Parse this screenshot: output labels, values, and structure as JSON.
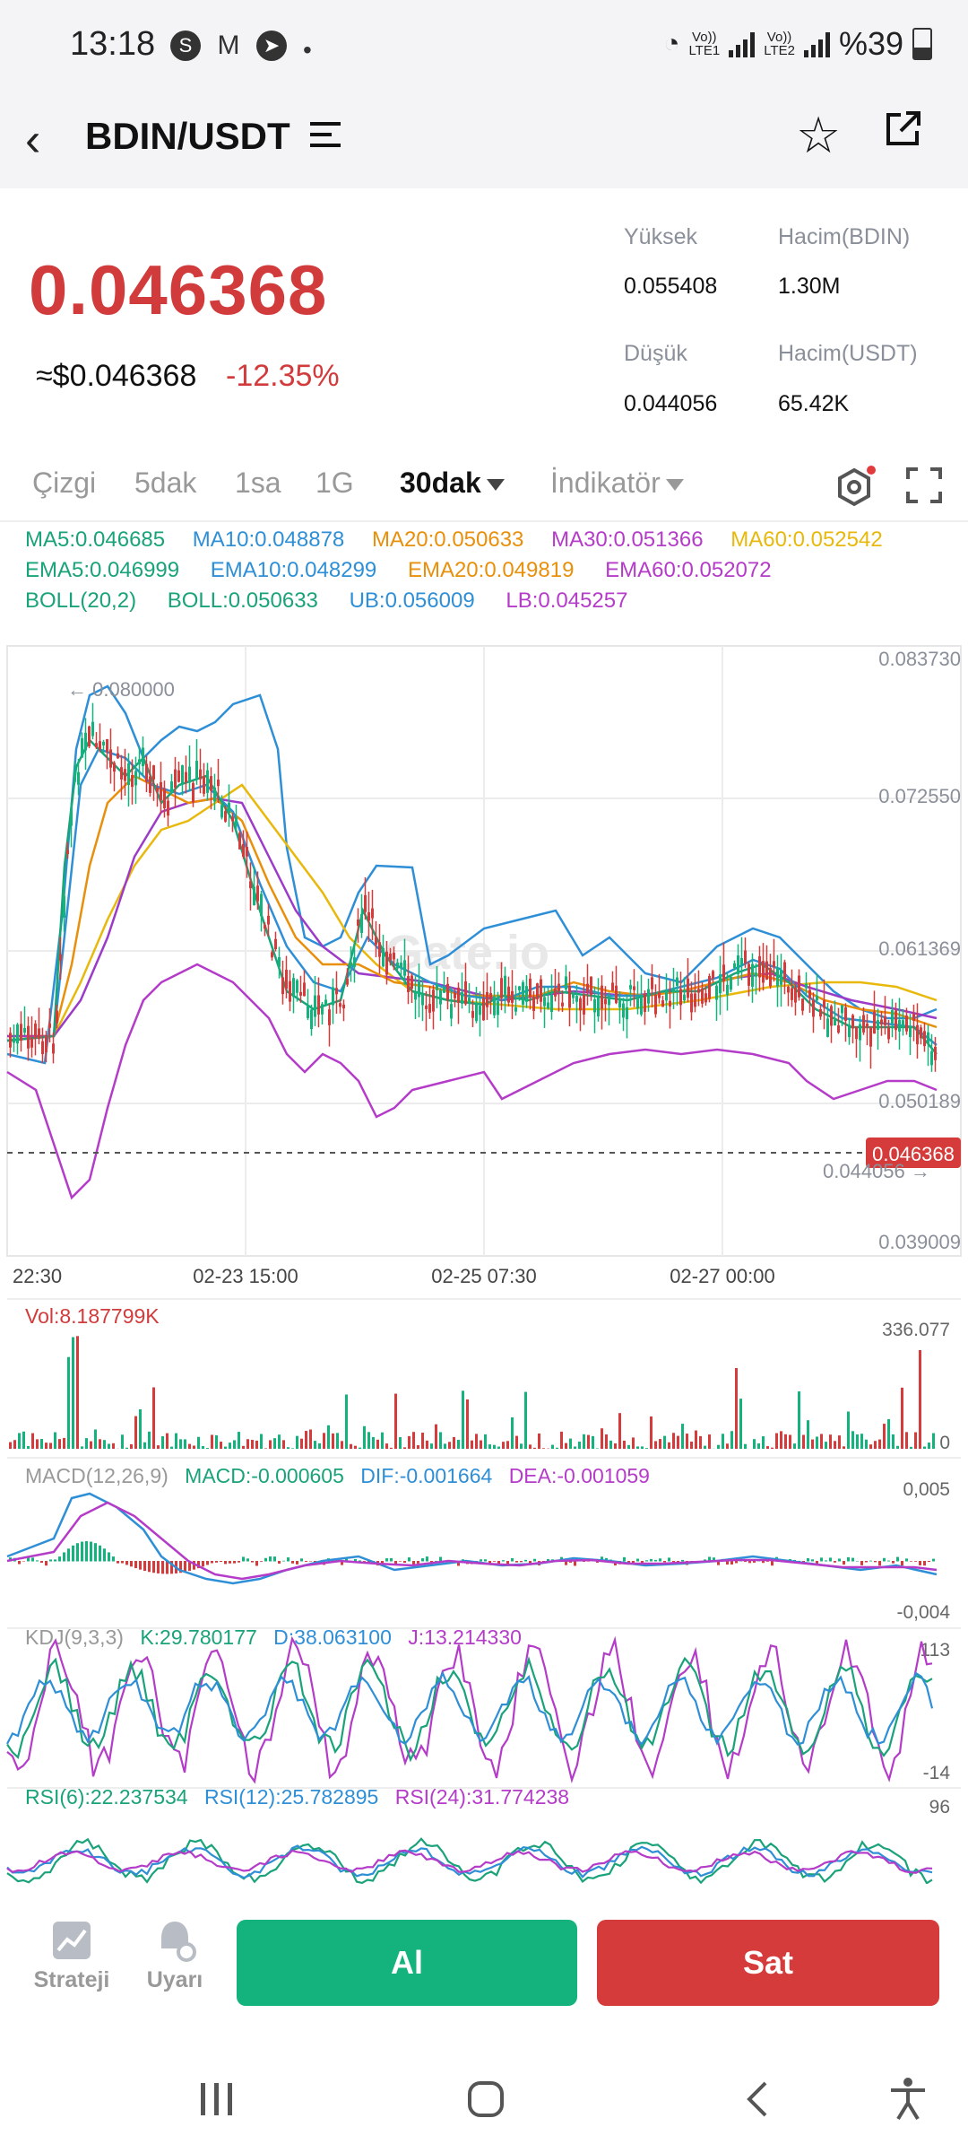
{
  "status_bar": {
    "time": "13:18",
    "battery": "%39",
    "sim1": "LTE1",
    "sim2": "LTE2",
    "volte": "Vo))"
  },
  "header": {
    "pair": "BDIN/USDT",
    "icons": [
      "back-arrow-icon",
      "list-menu-icon",
      "star-icon",
      "share-icon"
    ]
  },
  "ticker": {
    "last_price": "0.046368",
    "usd_price": "≈$0.046368",
    "change": "-12.35%",
    "stats": [
      {
        "label": "Yüksek",
        "value": "0.055408"
      },
      {
        "label": "Hacim(BDIN)",
        "value": "1.30M"
      },
      {
        "label": "Düşük",
        "value": "0.044056"
      },
      {
        "label": "Hacim(USDT)",
        "value": "65.42K"
      }
    ]
  },
  "timeframes": {
    "tabs": [
      "Çizgi",
      "5dak",
      "1sa",
      "1G",
      "30dak",
      "İndikatör"
    ],
    "active": "30dak"
  },
  "indicators": {
    "ma": [
      {
        "text": "MA5:0.046685",
        "color": "#1aa37a"
      },
      {
        "text": "MA10:0.048878",
        "color": "#2f8fd6"
      },
      {
        "text": "MA20:0.050633",
        "color": "#e8900c"
      },
      {
        "text": "MA30:0.051366",
        "color": "#b43cc8"
      },
      {
        "text": "MA60:0.052542",
        "color": "#e8b90c"
      }
    ],
    "ema": [
      {
        "text": "EMA5:0.046999",
        "color": "#1aa37a"
      },
      {
        "text": "EMA10:0.048299",
        "color": "#2f8fd6"
      },
      {
        "text": "EMA20:0.049819",
        "color": "#e8900c"
      },
      {
        "text": "EMA60:0.052072",
        "color": "#b43cc8"
      }
    ],
    "boll": [
      {
        "text": "BOLL(20,2)",
        "color": "#1aa37a"
      },
      {
        "text": "BOLL:0.050633",
        "color": "#1aa37a"
      },
      {
        "text": "UB:0.056009",
        "color": "#2f8fd6"
      },
      {
        "text": "LB:0.045257",
        "color": "#b43cc8"
      }
    ]
  },
  "main_chart": {
    "y_ticks": [
      "0.083730",
      "0.072550",
      "0.061369",
      "0.050189",
      "0.039009"
    ],
    "x_ticks": [
      "22:30",
      "02-23 15:00",
      "02-25 07:30",
      "02-27 00:00"
    ],
    "high_marker": "← 0.080000",
    "low_marker": "0.044056 →",
    "current_tag": "0.046368",
    "watermark": "Gate.io"
  },
  "volume": {
    "label": "Vol:8.187799K",
    "max_tick": "336.077",
    "min_tick": "0"
  },
  "macd": {
    "label": "MACD(12,26,9)",
    "macd": "MACD:-0.000605",
    "dif": "DIF:-0.001664",
    "dea": "DEA:-0.001059",
    "top_tick": "0,005",
    "bottom_tick": "-0,004"
  },
  "kdj": {
    "label": "KDJ(9,3,3)",
    "k": "K:29.780177",
    "d": "D:38.063100",
    "j": "J:13.214330",
    "top_tick": "113",
    "bottom_tick": "-14"
  },
  "rsi": {
    "rsi6": "RSI(6):22.237534",
    "rsi12": "RSI(12):25.782895",
    "rsi24": "RSI(24):31.774238",
    "top_tick": "96"
  },
  "bottom_bar": {
    "strategy": "Strateji",
    "alert": "Uyarı",
    "buy": "Al",
    "sell": "Sat"
  },
  "colors": {
    "up": "#14b37e",
    "down": "#d63b3b",
    "accent_red": "#d23b3b"
  }
}
